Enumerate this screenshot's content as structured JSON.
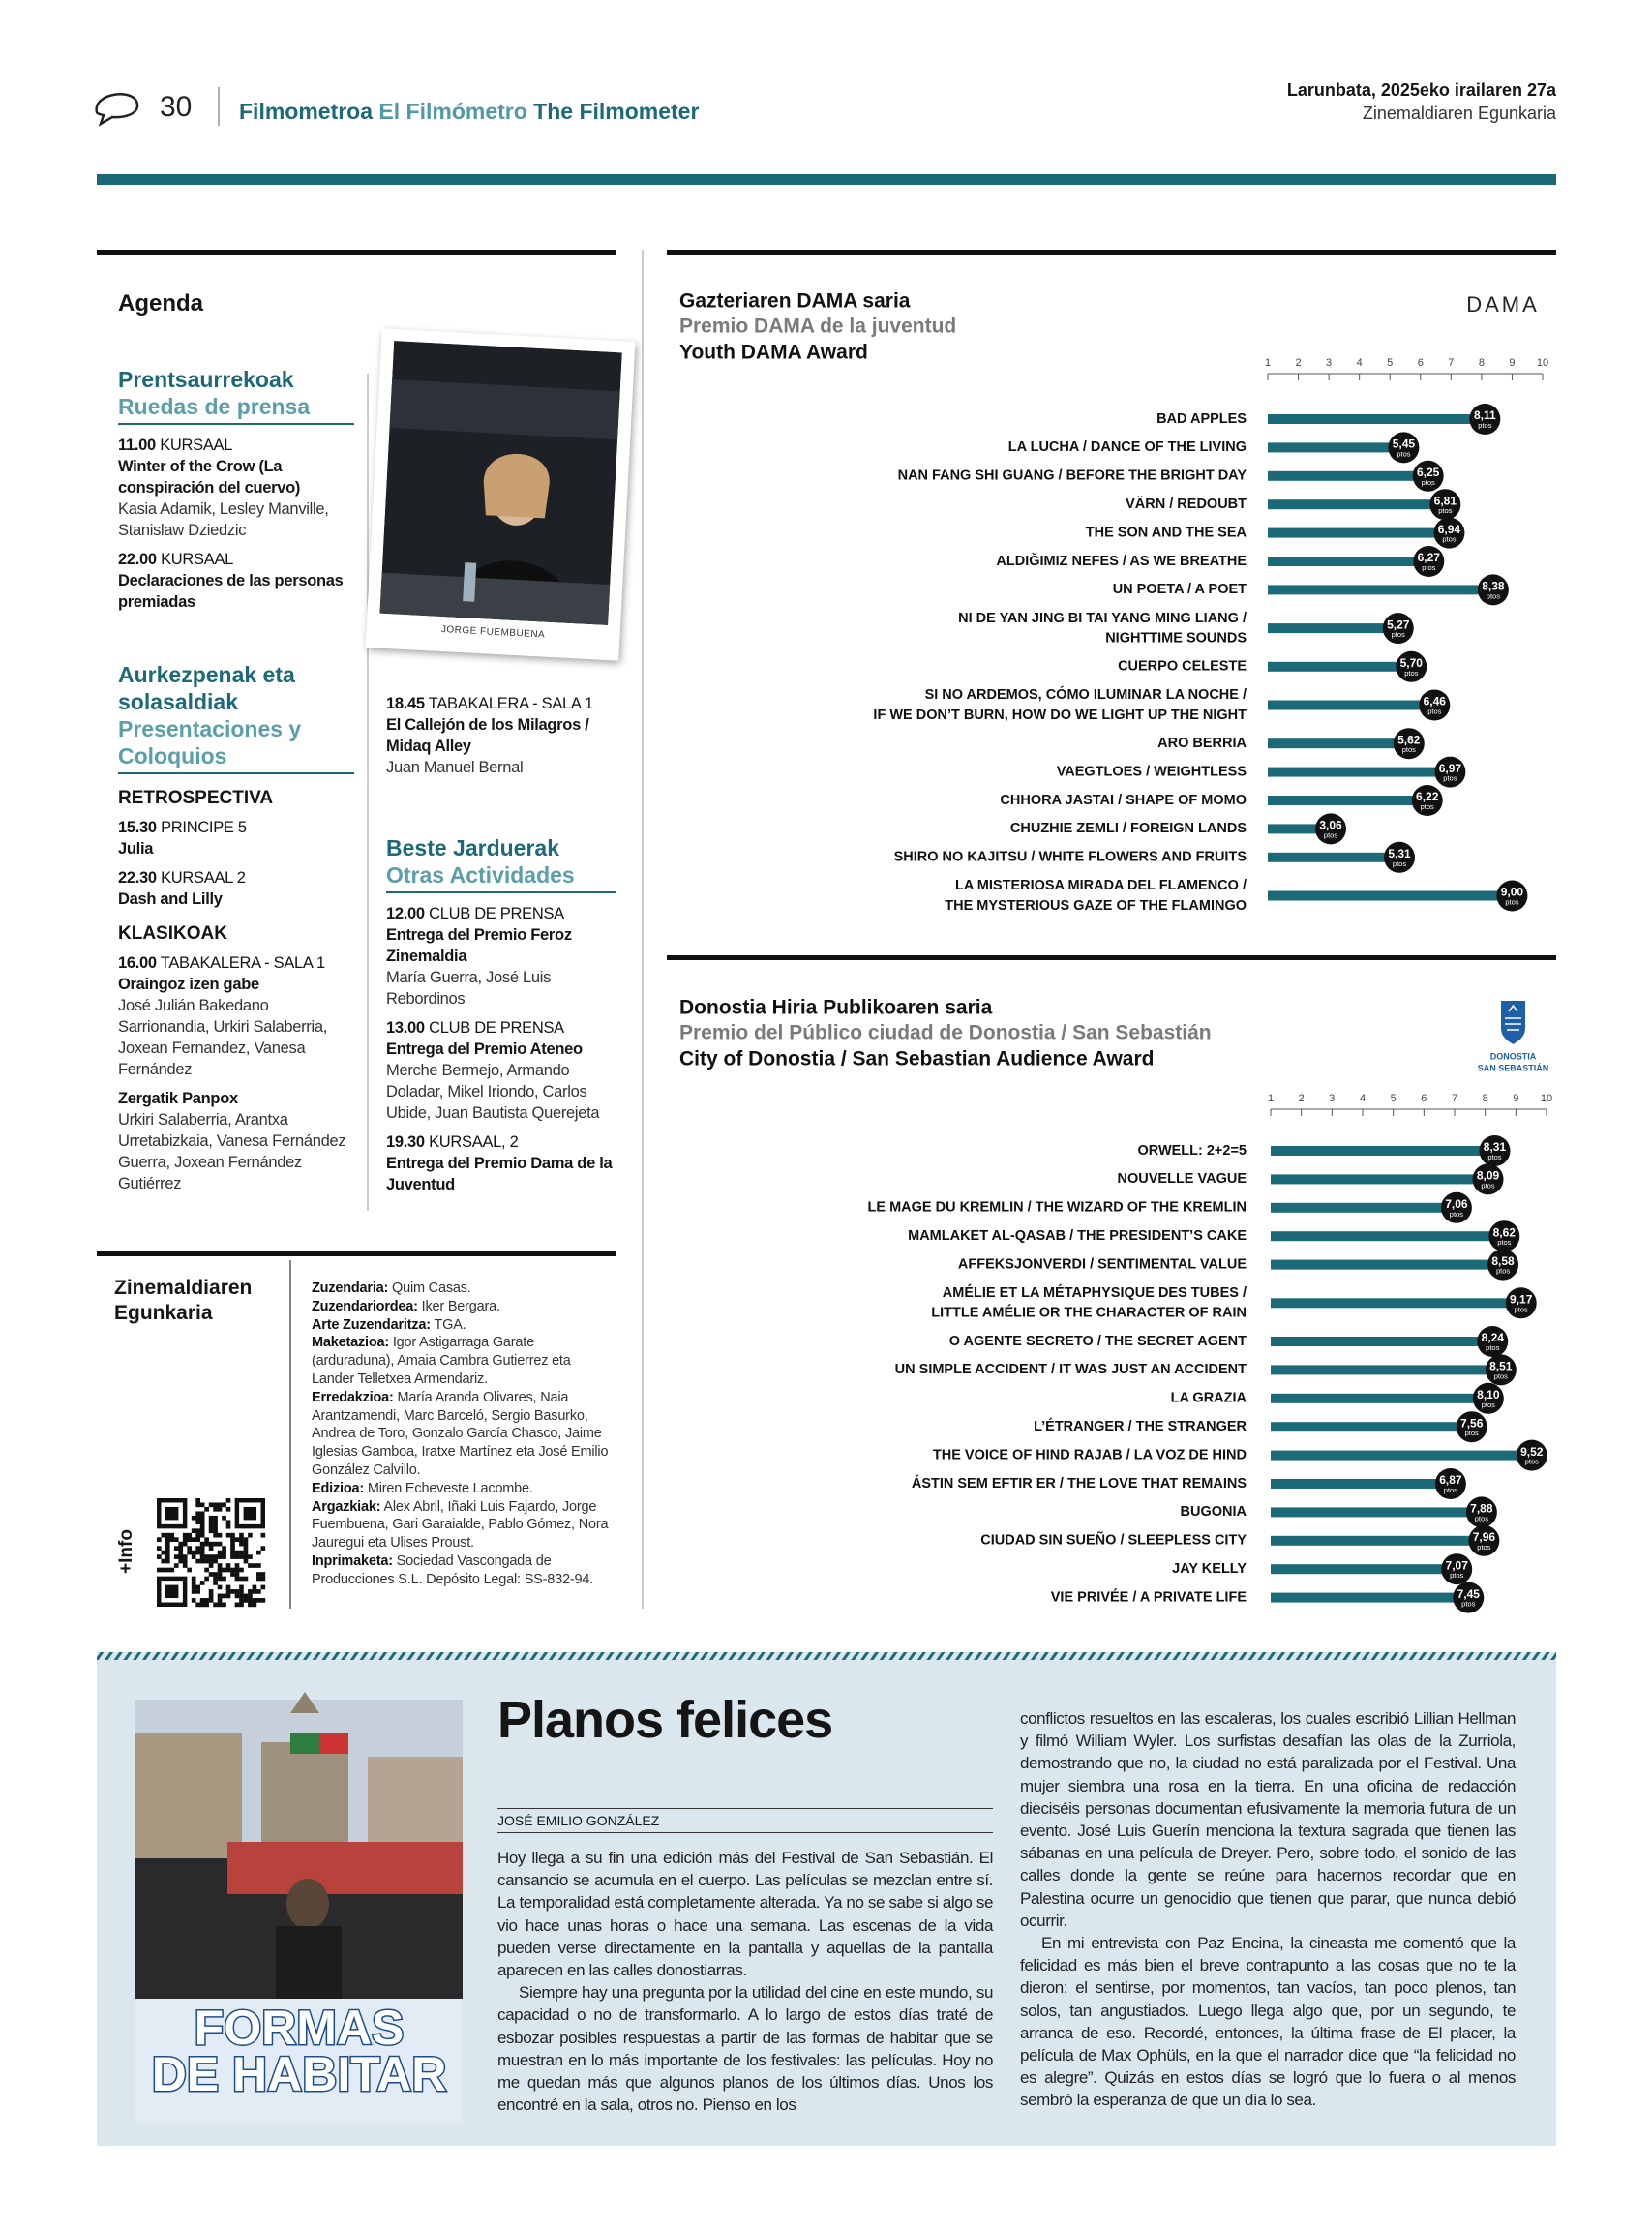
{
  "header": {
    "page_number": "30",
    "section_eu": "Filmometroa",
    "section_es": "El Filmómetro",
    "section_en": "The Filmometer",
    "date": "Larunbata, 2025eko irailaren 27a",
    "publication": "Zinemaldiaren Egunkaria"
  },
  "agenda": {
    "title": "Agenda",
    "photo_credit": "JORGE FUEMBUENA",
    "press": {
      "title_eu": "Prentsaurrekoak",
      "title_es": "Ruedas de prensa",
      "items": [
        {
          "time": "11.00",
          "place": "KURSAAL",
          "title": "Winter of the Crow (La conspiración del cuervo)",
          "people": "Kasia Adamik, Lesley Manville, Stanislaw Dziedzic"
        },
        {
          "time": "22.00",
          "place": "KURSAAL",
          "title": "Declaraciones de las personas premiadas"
        }
      ]
    },
    "presentations": {
      "title_eu": "Aurkezpenak eta solasaldiak",
      "title_es": "Presentaciones y Coloquios",
      "groups": [
        {
          "label": "RETROSPECTIVA",
          "items": [
            {
              "time": "15.30",
              "place": "PRINCIPE 5",
              "title": "Julia"
            },
            {
              "time": "22.30",
              "place": "KURSAAL 2",
              "title": "Dash and Lilly"
            }
          ]
        },
        {
          "label": "KLASIKOAK",
          "items": [
            {
              "time": "16.00",
              "place": "TABAKALERA - SALA 1",
              "title": "Oraingoz izen gabe",
              "people": "José Julián Bakedano Sarrionandia, Urkiri Salaberria, Joxean Fernandez, Vanesa Fernández"
            },
            {
              "title": "Zergatik Panpox",
              "people": "Urkiri Salaberria, Arantxa Urretabizkaia, Vanesa Fernández Guerra, Joxean Fernández Gutiérrez"
            },
            {
              "time": "18.45",
              "place": "TABAKALERA - SALA 1",
              "title": "El Callejón de los Milagros / Midaq Alley",
              "people": "Juan Manuel Bernal"
            }
          ]
        }
      ]
    },
    "other": {
      "title_eu": "Beste Jarduerak",
      "title_es": "Otras Actividades",
      "items": [
        {
          "time": "12.00",
          "place": "CLUB DE PRENSA",
          "title": "Entrega del Premio Feroz Zinemaldia",
          "people": "María Guerra, José Luis Rebordinos"
        },
        {
          "time": "13.00",
          "place": "CLUB DE PRENSA",
          "title": "Entrega del Premio Ateneo",
          "people": "Merche Bermejo, Armando Doladar, Mikel Iriondo, Carlos Ubide, Juan Bautista Querejeta"
        },
        {
          "time": "19.30",
          "place": "KURSAAL, 2",
          "title": "Entrega del Premio Dama de la Juventud"
        }
      ]
    }
  },
  "masthead": {
    "name": "Zinemaldiaren Egunkaria",
    "info": "+Info",
    "staff": [
      {
        "role": "Zuzendaria:",
        "names": "Quim Casas."
      },
      {
        "role": "Zuzendariordea:",
        "names": "Iker Bergara."
      },
      {
        "role": "Arte Zuzendaritza:",
        "names": "TGA."
      },
      {
        "role": "Maketazioa:",
        "names": "Igor Astigarraga Garate (arduraduna), Amaia Cambra Gutierrez eta Lander Telletxea Armendariz."
      },
      {
        "role": "Erredakzioa:",
        "names": "María Aranda Olivares, Naia Arantzamendi, Marc Barceló, Sergio Basurko, Andrea de Toro, Gonzalo García Chasco, Jaime Iglesias Gamboa, Iratxe Martínez eta José Emilio González Calvillo."
      },
      {
        "role": "Edizioa:",
        "names": "Miren Echeveste Lacombe."
      },
      {
        "role": "Argazkiak:",
        "names": "Alex Abril, Iñaki Luis Fajardo, Jorge Fuembuena, Gari Garaialde, Pablo Gómez, Nora Jauregui eta Ulises Proust."
      },
      {
        "role": "Inprimaketa:",
        "names": "Sociedad Vascongada de Producciones S.L. Depósito Legal: SS-832-94."
      }
    ]
  },
  "chart_data": [
    {
      "type": "bar",
      "orientation": "horizontal",
      "title": "Gazteriaren DAMA saria",
      "subtitle": "Premio DAMA de la juventud",
      "title_en": "Youth DAMA Award",
      "logo": "DAMA",
      "color": "#1c6a78",
      "label_color": "#111111",
      "value_unit": "ptos",
      "xlim": [
        1,
        10
      ],
      "xticks": [
        1,
        2,
        3,
        4,
        5,
        6,
        7,
        8,
        9,
        10
      ],
      "categories": [
        "BAD APPLES",
        "LA LUCHA / DANCE OF THE LIVING",
        "NAN FANG SHI GUANG / BEFORE THE BRIGHT DAY",
        "VÄRN / REDOUBT",
        "THE SON AND THE SEA",
        "ALDIĞIMIZ NEFES / AS WE BREATHE",
        "UN POETA / A POET",
        "NI DE YAN JING BI TAI YANG MING LIANG / NIGHTTIME SOUNDS",
        "CUERPO CELESTE",
        "SI NO ARDEMOS, CÓMO ILUMINAR LA NOCHE / IF WE DON’T BURN, HOW DO WE LIGHT UP THE NIGHT",
        "ARO BERRIA",
        "VAEGTLOES / WEIGHTLESS",
        "CHHORA JASTAI / SHAPE OF MOMO",
        "CHUZHIE ZEMLI / FOREIGN LANDS",
        "SHIRO NO KAJITSU / WHITE FLOWERS AND FRUITS",
        "LA MISTERIOSA MIRADA DEL FLAMENCO / THE MYSTERIOUS GAZE OF THE FLAMINGO"
      ],
      "values": [
        8.11,
        5.45,
        6.25,
        6.81,
        6.94,
        6.27,
        8.38,
        5.27,
        5.7,
        6.46,
        5.62,
        6.97,
        6.22,
        3.06,
        5.31,
        9.0
      ],
      "value_labels": [
        "8,11",
        "5,45",
        "6,25",
        "6,81",
        "6,94",
        "6,27",
        "8,38",
        "5,27",
        "5,70",
        "6,46",
        "5,62",
        "6,97",
        "6,22",
        "3,06",
        "5,31",
        "9,00"
      ]
    },
    {
      "type": "bar",
      "orientation": "horizontal",
      "title": "Donostia Hiria Publikoaren saria",
      "subtitle": "Premio del Público ciudad de Donostia / San Sebastián",
      "title_en": "City of Donostia / San Sebastian Audience Award",
      "logo": [
        "DONOSTIA",
        "SAN SEBASTIÁN"
      ],
      "color": "#1c6a78",
      "label_color": "#111111",
      "value_unit": "ptos",
      "xlim": [
        1,
        10
      ],
      "xticks": [
        1,
        2,
        3,
        4,
        5,
        6,
        7,
        8,
        9,
        10
      ],
      "categories": [
        "ORWELL: 2+2=5",
        "NOUVELLE VAGUE",
        "LE MAGE DU KREMLIN / THE WIZARD OF THE KREMLIN",
        "MAMLAKET AL-QASAB / THE PRESIDENT’S CAKE",
        "AFFEKSJONVERDI / SENTIMENTAL VALUE",
        "AMÉLIE ET LA MÉTAPHYSIQUE DES TUBES / LITTLE AMÉLIE OR THE CHARACTER OF RAIN",
        "O AGENTE SECRETO / THE SECRET AGENT",
        "UN SIMPLE ACCIDENT / IT WAS JUST AN ACCIDENT",
        "LA GRAZIA",
        "L’ÉTRANGER / THE STRANGER",
        "THE VOICE OF HIND RAJAB / LA VOZ DE HIND",
        "ÁSTIN SEM EFTIR ER / THE LOVE THAT REMAINS",
        "BUGONIA",
        "CIUDAD SIN SUEÑO / SLEEPLESS CITY",
        "JAY KELLY",
        "VIE PRIVÉE / A PRIVATE LIFE"
      ],
      "values": [
        8.31,
        8.09,
        7.06,
        8.62,
        8.58,
        9.17,
        8.24,
        8.51,
        8.1,
        7.56,
        9.52,
        6.87,
        7.88,
        7.96,
        7.07,
        7.45
      ],
      "value_labels": [
        "8,31",
        "8,09",
        "7,06",
        "8,62",
        "8,58",
        "9,17",
        "8,24",
        "8,51",
        "8,10",
        "7,56",
        "9,52",
        "6,87",
        "7,88",
        "7,96",
        "7,07",
        "7,45"
      ]
    }
  ],
  "article": {
    "title": "Planos felices",
    "author": "JOSÉ EMILIO GONZÁLEZ",
    "image_text": [
      "FORMAS",
      "DE HABITAR"
    ],
    "columns": [
      [
        "Hoy llega a su fin una edición más del Festival de San Sebastián. El cansancio se acumula en el cuerpo. Las películas se mezclan entre sí. La temporalidad está completamente alterada. Ya no se sabe si algo se vio hace unas horas o hace una semana. Las escenas de la vida pueden verse directamente en la pantalla y aquellas de la pantalla aparecen en las calles donostiarras.",
        "Siempre hay una pregunta por la utilidad del cine en este mundo, su capacidad o no de transformarlo. A lo largo de estos días traté de esbozar posibles respuestas a partir de las formas de habitar que se muestran en lo más importante de los festivales: las películas. Hoy no me quedan más que algunos planos de los últimos días. Unos los encontré en la sala, otros no. Pienso en los"
      ],
      [
        "conflictos resueltos en las escaleras, los cuales escribió Lillian Hellman y filmó William Wyler. Los surfistas desafían las olas de la Zurriola, demostrando que no, la ciudad no está paralizada por el Festival. Una mujer siembra una rosa en la tierra. En una oficina de redacción dieciséis personas documentan efusivamente la memoria futura de un evento. José Luis Guerín menciona la textura sagrada que tienen las sábanas en una película de Dreyer. Pero, sobre todo, el sonido de las calles donde la gente se reúne para hacernos recordar que en Palestina ocurre un genocidio que tienen que parar, que nunca debió ocurrir.",
        "En mi entrevista con Paz Encina, la cineasta me comentó que la felicidad es más bien el breve contrapunto a las cosas que no te la dieron: el sentirse, por momentos, tan vacíos, tan poco plenos, tan solos, tan angustiados. Luego llega algo que, por un segundo, te arranca de eso. Recordé, entonces, la última frase de El placer, la película de Max Ophüls, en la que el narrador dice que “la felicidad no es alegre”. Quizás en estos días se logró que lo fuera o al menos sembró la esperanza de que un día lo sea."
      ]
    ]
  }
}
